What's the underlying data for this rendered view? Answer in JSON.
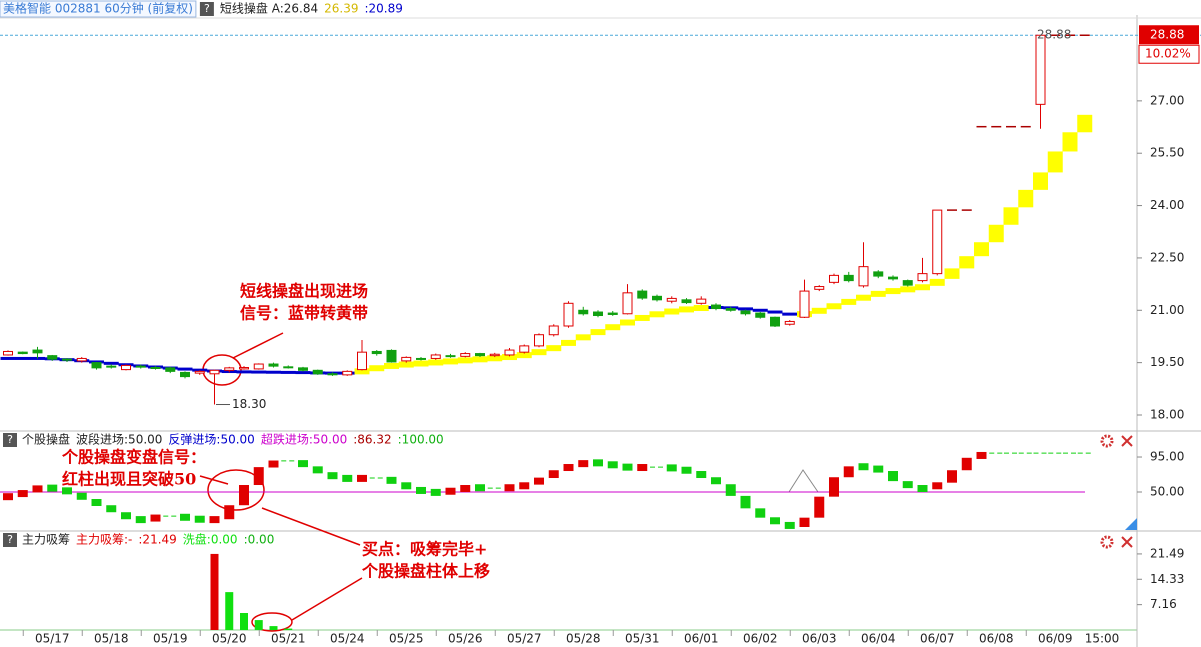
{
  "help_icon": "?",
  "chart_data": [
    {
      "type": "candlestick",
      "title": "美格智能 002881 60分钟 (前复权)",
      "legend": [
        {
          "text": "短线操盘 A:26.84",
          "color": "#222222"
        },
        {
          "text": "26.39",
          "color": "#d4b800"
        },
        {
          "text": ":20.89",
          "color": "#0000cc"
        }
      ],
      "categories": [
        null,
        null,
        null,
        "05/17",
        null,
        null,
        null,
        "05/18",
        null,
        null,
        null,
        "05/19",
        null,
        null,
        null,
        "05/20",
        null,
        null,
        null,
        "05/21",
        null,
        null,
        null,
        "05/24",
        null,
        null,
        null,
        "05/25",
        null,
        null,
        null,
        "05/26",
        null,
        null,
        null,
        "05/27",
        null,
        null,
        null,
        "05/28",
        null,
        null,
        null,
        "05/31",
        null,
        null,
        null,
        "06/01",
        null,
        null,
        null,
        "06/02",
        null,
        null,
        null,
        "06/03",
        null,
        null,
        null,
        "06/04",
        null,
        null,
        null,
        "06/07",
        null,
        null,
        null,
        "06/08",
        null,
        null,
        null,
        "06/09",
        null,
        null
      ],
      "open": [
        19.72,
        19.8,
        19.86,
        19.7,
        19.6,
        19.55,
        19.5,
        19.4,
        19.3,
        19.4,
        19.36,
        19.35,
        19.22,
        19.2,
        19.18,
        19.28,
        19.32,
        19.32,
        19.46,
        19.38,
        19.35,
        19.28,
        19.18,
        19.15,
        19.3,
        19.82,
        19.85,
        19.55,
        19.62,
        19.62,
        19.7,
        19.68,
        19.76,
        19.7,
        19.72,
        19.8,
        19.98,
        20.3,
        20.55,
        21.0,
        20.95,
        20.92,
        20.9,
        21.55,
        21.4,
        21.26,
        21.3,
        21.2,
        21.15,
        21.05,
        20.98,
        20.92,
        20.8,
        20.6,
        20.8,
        21.6,
        21.8,
        22.0,
        21.7,
        22.1,
        21.95,
        21.85,
        21.85,
        22.05,
        23.87,
        23.87,
        26.26,
        26.26,
        26.26,
        26.26,
        26.9,
        28.88,
        28.88,
        28.88
      ],
      "close": [
        19.82,
        19.76,
        19.78,
        19.6,
        19.58,
        19.62,
        19.35,
        19.38,
        19.42,
        19.38,
        19.34,
        19.25,
        19.1,
        19.25,
        19.28,
        19.35,
        19.36,
        19.46,
        19.4,
        19.36,
        19.28,
        19.18,
        19.16,
        19.25,
        19.8,
        19.76,
        19.52,
        19.65,
        19.6,
        19.72,
        19.68,
        19.76,
        19.7,
        19.74,
        19.86,
        19.98,
        20.3,
        20.55,
        21.2,
        20.9,
        20.85,
        20.88,
        21.5,
        21.35,
        21.3,
        21.34,
        21.22,
        21.32,
        21.05,
        21.0,
        20.9,
        20.8,
        20.55,
        20.68,
        21.55,
        21.68,
        22.0,
        21.85,
        22.25,
        21.98,
        21.9,
        21.72,
        22.05,
        23.87,
        23.87,
        23.87,
        26.26,
        26.26,
        26.26,
        26.26,
        28.88,
        28.88,
        28.88,
        28.88
      ],
      "high": [
        19.85,
        19.82,
        19.95,
        19.72,
        19.63,
        19.66,
        19.52,
        19.45,
        19.45,
        19.44,
        19.4,
        19.38,
        19.25,
        19.28,
        19.3,
        19.38,
        19.4,
        19.48,
        19.5,
        19.42,
        19.38,
        19.3,
        19.22,
        19.28,
        20.15,
        19.86,
        19.88,
        19.68,
        19.66,
        19.76,
        19.75,
        19.8,
        19.78,
        19.78,
        19.92,
        20.02,
        20.34,
        20.6,
        21.26,
        21.1,
        21.0,
        20.98,
        21.75,
        21.6,
        21.45,
        21.4,
        21.35,
        21.4,
        21.2,
        21.1,
        21.02,
        20.95,
        20.82,
        20.72,
        21.88,
        21.72,
        22.05,
        22.1,
        22.95,
        22.15,
        22.0,
        21.88,
        22.5,
        23.87,
        23.87,
        23.87,
        26.26,
        26.26,
        26.26,
        26.26,
        28.88,
        28.88,
        28.88,
        28.88
      ],
      "low": [
        19.7,
        19.74,
        19.62,
        19.55,
        19.52,
        19.5,
        19.3,
        19.33,
        19.28,
        19.33,
        19.3,
        19.2,
        19.05,
        19.15,
        18.3,
        19.22,
        19.3,
        19.3,
        19.36,
        19.33,
        19.25,
        19.15,
        19.12,
        19.12,
        19.28,
        19.7,
        19.5,
        19.5,
        19.56,
        19.58,
        19.64,
        19.65,
        19.66,
        19.66,
        19.68,
        19.76,
        19.94,
        20.25,
        20.5,
        20.85,
        20.8,
        20.84,
        20.88,
        21.3,
        21.25,
        21.2,
        21.18,
        21.16,
        21.0,
        20.96,
        20.85,
        20.76,
        20.52,
        20.56,
        20.78,
        21.55,
        21.75,
        21.8,
        21.65,
        21.92,
        21.85,
        21.68,
        21.8,
        22.0,
        23.87,
        23.87,
        26.26,
        26.26,
        26.26,
        26.26,
        26.2,
        28.88,
        28.88,
        28.88
      ],
      "up_color": "#e00000",
      "down_color": "#10a010",
      "flat_color": "#aa0000",
      "band": {
        "values": [
          19.62,
          19.62,
          19.62,
          19.6,
          19.57,
          19.54,
          19.5,
          19.46,
          19.42,
          19.39,
          19.36,
          19.33,
          19.3,
          19.27,
          19.25,
          19.24,
          19.23,
          19.23,
          19.22,
          19.22,
          19.21,
          19.2,
          19.2,
          19.2,
          19.3,
          19.38,
          19.43,
          19.46,
          19.49,
          19.52,
          19.55,
          19.58,
          19.61,
          19.64,
          19.68,
          19.75,
          19.85,
          19.98,
          20.15,
          20.3,
          20.45,
          20.58,
          20.72,
          20.84,
          20.93,
          21.0,
          21.05,
          21.08,
          21.08,
          21.06,
          21.02,
          20.98,
          20.92,
          20.86,
          20.92,
          21.05,
          21.18,
          21.3,
          21.42,
          21.52,
          21.58,
          21.62,
          21.7,
          21.9,
          22.2,
          22.55,
          22.95,
          23.45,
          23.95,
          24.45,
          24.95,
          25.55,
          26.1,
          26.6
        ],
        "up_color": "#ffff00",
        "down_color": "#0000cc"
      },
      "ylim": [
        17.57,
        29.46
      ],
      "yticks": [
        {
          "value": 18,
          "label": "18.00"
        },
        {
          "value": 19.5,
          "label": "19.50"
        },
        {
          "value": 21,
          "label": "21.00"
        },
        {
          "value": 22.5,
          "label": "22.50"
        },
        {
          "value": 24,
          "label": "24.00"
        },
        {
          "value": 25.5,
          "label": "25.50"
        },
        {
          "value": 27,
          "label": "27.00"
        }
      ],
      "last_price": {
        "value": 28.88,
        "label": "28.88"
      },
      "change_label": "10.02%",
      "low_label": {
        "value": 18.3,
        "label": "18.30"
      },
      "annotation": [
        "短线操盘出现进场",
        "信号：蓝带转黄带"
      ],
      "end_time_label": "15:00"
    },
    {
      "type": "step-bar",
      "legend": [
        {
          "text": "个股操盘",
          "color": "#222222"
        },
        {
          "text": "波段进场:50.00",
          "color": "#222222"
        },
        {
          "text": "反弹进场:50.00",
          "color": "#0000cc"
        },
        {
          "text": "超跌进场:50.00",
          "color": "#cc00cc"
        },
        {
          "text": ":86.32",
          "color": "#aa0000"
        },
        {
          "text": ":100.00",
          "color": "#10b010"
        }
      ],
      "values": [
        44,
        52,
        56,
        54,
        49,
        40,
        33,
        24,
        15,
        14,
        19,
        19,
        16,
        14,
        15,
        33,
        59,
        82,
        90,
        90,
        83,
        74,
        68,
        67,
        68,
        68,
        62,
        54,
        50,
        49,
        53,
        56,
        55,
        55,
        56,
        60,
        68,
        78,
        85,
        88,
        87,
        83,
        81,
        82,
        82,
        80,
        76,
        69,
        60,
        45,
        29,
        17,
        9,
        5,
        17,
        44,
        69,
        83,
        82,
        77,
        64,
        55,
        54,
        62,
        78,
        94,
        100,
        100,
        100,
        100,
        100,
        100,
        100,
        100
      ],
      "up_color": "#e00000",
      "down_color": "#10d010",
      "reference_line": {
        "value": 50,
        "color": "#cc00cc"
      },
      "ylim": [
        1.14,
        106.6
      ],
      "yticks": [
        {
          "value": 95,
          "label": "95.00"
        },
        {
          "value": 50,
          "label": "50.00"
        }
      ],
      "annotation": [
        "个股操盘变盘信号：",
        "红柱出现且突破50"
      ]
    },
    {
      "type": "bar",
      "legend": [
        {
          "text": "主力吸筹",
          "color": "#222222"
        },
        {
          "text": ":21.49",
          "color": "#e00000"
        },
        {
          "text": ":0.00",
          "color": "#10b010"
        }
      ],
      "series": [
        {
          "name": "主力吸筹:-",
          "color": "#e00000",
          "values": [
            0,
            0,
            0,
            0,
            0,
            0,
            0,
            0,
            0,
            0,
            0,
            0,
            0,
            0,
            21.49,
            0,
            0,
            0,
            0,
            0,
            0,
            0,
            0,
            0,
            0,
            0,
            0,
            0,
            0,
            0,
            0,
            0,
            0,
            0,
            0,
            0,
            0,
            0,
            0,
            0,
            0,
            0,
            0,
            0,
            0,
            0,
            0,
            0,
            0,
            0,
            0,
            0,
            0,
            0,
            0,
            0,
            0,
            0,
            0,
            0,
            0,
            0,
            0,
            0,
            0,
            0,
            0,
            0,
            0,
            0,
            0,
            0,
            0,
            0
          ]
        },
        {
          "name": "洗盘:0.00",
          "color": "#10e010",
          "values": [
            0,
            0,
            0,
            0,
            0,
            0,
            0,
            0,
            0,
            0,
            0,
            0,
            0,
            0,
            0,
            10.7,
            4.8,
            2.8,
            1.1,
            0.4,
            0,
            0,
            0,
            0,
            0,
            0,
            0,
            0,
            0,
            0,
            0,
            0,
            0,
            0,
            0,
            0,
            0,
            0,
            0,
            0,
            0,
            0,
            0,
            0,
            0,
            0,
            0,
            0,
            0,
            0,
            0,
            0,
            0,
            0,
            0,
            0,
            0,
            0,
            0,
            0,
            0,
            0,
            0,
            0,
            0,
            0,
            0,
            0,
            0,
            0,
            0,
            0,
            0,
            0
          ]
        }
      ],
      "ylim": [
        0,
        27.4
      ],
      "yticks": [
        21.49,
        14.33,
        7.16
      ],
      "annotation": [
        "买点：吸筹完毕+",
        "个股操盘柱体上移"
      ]
    }
  ]
}
